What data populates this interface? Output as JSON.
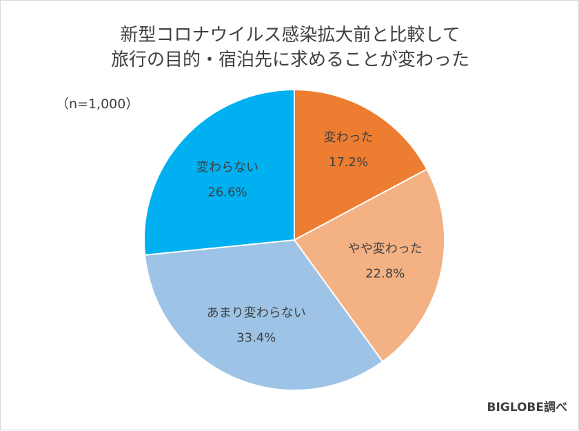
{
  "chart_data": {
    "type": "pie",
    "title_lines": [
      "新型コロナウイルス感染拡大前と比較して",
      "旅行の目的・宿泊先に求めることが変わった"
    ],
    "sample_size": "（n=1,000）",
    "credit": "BIGLOBE調べ",
    "unit": "%",
    "start_angle_deg": 0,
    "direction": "clockwise",
    "slices": [
      {
        "label": "変わった",
        "value": 17.2,
        "value_text": "17.2%",
        "color": "#ED7D31"
      },
      {
        "label": "やや変わった",
        "value": 22.8,
        "value_text": "22.8%",
        "color": "#F4B183"
      },
      {
        "label": "あまり変わらない",
        "value": 33.4,
        "value_text": "33.4%",
        "color": "#9DC3E6"
      },
      {
        "label": "変わらない",
        "value": 26.6,
        "value_text": "26.6%",
        "color": "#00B0F0"
      }
    ]
  }
}
